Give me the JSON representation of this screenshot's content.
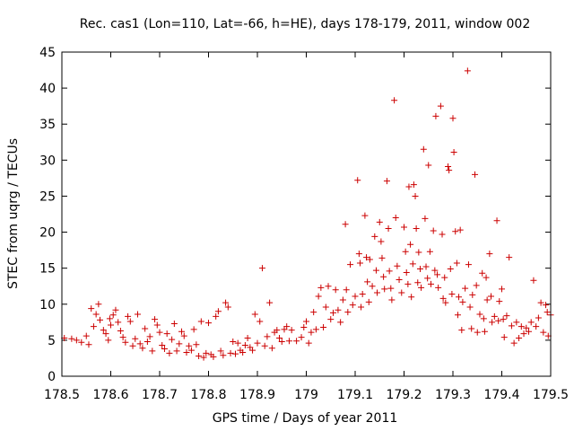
{
  "chart_data": {
    "type": "scatter",
    "title": "Rec. cas1 (Lon=110, Lat=-66, h=HE), days 178-179, 2011, window 002",
    "xlabel": "GPS time / Days of year 2011",
    "ylabel": "STEC from uqrg / TECUs",
    "xlim": [
      178.5,
      179.5
    ],
    "ylim": [
      0,
      45
    ],
    "x_ticks": [
      "178.5",
      "178.6",
      "178.7",
      "178.8",
      "178.9",
      "179",
      "179.1",
      "179.2",
      "179.3",
      "179.4",
      "179.5"
    ],
    "y_ticks": [
      "0",
      "5",
      "10",
      "15",
      "20",
      "25",
      "30",
      "35",
      "40",
      "45"
    ],
    "marker": "+",
    "color": "#cc0000",
    "grid": false,
    "legend": "none",
    "points": [
      [
        178.505,
        5.3
      ],
      [
        178.52,
        5.2
      ],
      [
        178.53,
        5.0
      ],
      [
        178.54,
        4.7
      ],
      [
        178.55,
        5.6
      ],
      [
        178.555,
        4.4
      ],
      [
        178.56,
        9.4
      ],
      [
        178.565,
        6.9
      ],
      [
        178.57,
        8.6
      ],
      [
        178.575,
        10.0
      ],
      [
        178.578,
        7.8
      ],
      [
        178.585,
        6.4
      ],
      [
        178.59,
        5.9
      ],
      [
        178.595,
        5.0
      ],
      [
        178.598,
        8.0
      ],
      [
        178.6,
        7.1
      ],
      [
        178.605,
        8.5
      ],
      [
        178.61,
        9.2
      ],
      [
        178.615,
        7.5
      ],
      [
        178.62,
        6.3
      ],
      [
        178.625,
        5.4
      ],
      [
        178.63,
        4.7
      ],
      [
        178.635,
        8.3
      ],
      [
        178.64,
        7.6
      ],
      [
        178.645,
        4.2
      ],
      [
        178.65,
        5.2
      ],
      [
        178.655,
        8.6
      ],
      [
        178.66,
        4.5
      ],
      [
        178.665,
        3.9
      ],
      [
        178.67,
        6.6
      ],
      [
        178.675,
        4.8
      ],
      [
        178.68,
        5.5
      ],
      [
        178.685,
        3.5
      ],
      [
        178.69,
        7.9
      ],
      [
        178.695,
        7.1
      ],
      [
        178.7,
        6.1
      ],
      [
        178.705,
        4.3
      ],
      [
        178.71,
        3.8
      ],
      [
        178.715,
        5.9
      ],
      [
        178.72,
        3.2
      ],
      [
        178.725,
        5.1
      ],
      [
        178.73,
        7.3
      ],
      [
        178.735,
        3.5
      ],
      [
        178.74,
        4.5
      ],
      [
        178.745,
        6.2
      ],
      [
        178.75,
        5.6
      ],
      [
        178.755,
        3.3
      ],
      [
        178.76,
        4.2
      ],
      [
        178.765,
        3.6
      ],
      [
        178.77,
        6.5
      ],
      [
        178.775,
        4.4
      ],
      [
        178.78,
        2.8
      ],
      [
        178.785,
        7.6
      ],
      [
        178.79,
        2.6
      ],
      [
        178.795,
        3.2
      ],
      [
        178.8,
        7.4
      ],
      [
        178.805,
        3.0
      ],
      [
        178.81,
        2.7
      ],
      [
        178.815,
        8.3
      ],
      [
        178.82,
        9.0
      ],
      [
        178.825,
        3.5
      ],
      [
        178.83,
        2.9
      ],
      [
        178.835,
        10.2
      ],
      [
        178.84,
        9.6
      ],
      [
        178.845,
        3.2
      ],
      [
        178.85,
        4.8
      ],
      [
        178.855,
        3.1
      ],
      [
        178.86,
        4.6
      ],
      [
        178.865,
        3.6
      ],
      [
        178.87,
        3.3
      ],
      [
        178.875,
        4.3
      ],
      [
        178.88,
        5.3
      ],
      [
        178.885,
        4.0
      ],
      [
        178.89,
        3.6
      ],
      [
        178.895,
        8.6
      ],
      [
        178.9,
        4.6
      ],
      [
        178.905,
        7.6
      ],
      [
        178.91,
        15.0
      ],
      [
        178.915,
        4.2
      ],
      [
        178.92,
        5.5
      ],
      [
        178.925,
        10.2
      ],
      [
        178.93,
        3.9
      ],
      [
        178.935,
        6.1
      ],
      [
        178.94,
        6.4
      ],
      [
        178.945,
        5.3
      ],
      [
        178.95,
        4.8
      ],
      [
        178.955,
        6.5
      ],
      [
        178.96,
        6.9
      ],
      [
        178.965,
        4.9
      ],
      [
        178.97,
        6.4
      ],
      [
        178.98,
        4.9
      ],
      [
        178.99,
        5.4
      ],
      [
        178.995,
        6.8
      ],
      [
        179.0,
        7.6
      ],
      [
        179.005,
        4.6
      ],
      [
        179.01,
        6.1
      ],
      [
        179.015,
        8.9
      ],
      [
        179.02,
        6.5
      ],
      [
        179.025,
        11.1
      ],
      [
        179.03,
        12.3
      ],
      [
        179.035,
        6.8
      ],
      [
        179.04,
        9.6
      ],
      [
        179.045,
        12.5
      ],
      [
        179.05,
        7.9
      ],
      [
        179.055,
        8.8
      ],
      [
        179.06,
        12.0
      ],
      [
        179.065,
        9.2
      ],
      [
        179.07,
        7.5
      ],
      [
        179.075,
        10.6
      ],
      [
        179.08,
        21.1
      ],
      [
        179.082,
        12.0
      ],
      [
        179.085,
        8.9
      ],
      [
        179.09,
        15.5
      ],
      [
        179.095,
        9.9
      ],
      [
        179.1,
        11.1
      ],
      [
        179.105,
        27.2
      ],
      [
        179.108,
        17.0
      ],
      [
        179.11,
        15.7
      ],
      [
        179.112,
        9.6
      ],
      [
        179.115,
        11.4
      ],
      [
        179.12,
        22.3
      ],
      [
        179.123,
        16.5
      ],
      [
        179.125,
        13.1
      ],
      [
        179.128,
        10.3
      ],
      [
        179.13,
        16.2
      ],
      [
        179.135,
        12.5
      ],
      [
        179.14,
        19.4
      ],
      [
        179.143,
        14.7
      ],
      [
        179.145,
        11.6
      ],
      [
        179.15,
        21.4
      ],
      [
        179.153,
        18.7
      ],
      [
        179.155,
        16.4
      ],
      [
        179.158,
        13.8
      ],
      [
        179.16,
        12.1
      ],
      [
        179.165,
        27.1
      ],
      [
        179.168,
        20.5
      ],
      [
        179.17,
        14.6
      ],
      [
        179.173,
        12.2
      ],
      [
        179.175,
        10.6
      ],
      [
        179.18,
        38.3
      ],
      [
        179.183,
        22.0
      ],
      [
        179.186,
        15.3
      ],
      [
        179.19,
        13.4
      ],
      [
        179.195,
        11.6
      ],
      [
        179.2,
        20.7
      ],
      [
        179.203,
        17.3
      ],
      [
        179.205,
        14.4
      ],
      [
        179.208,
        12.8
      ],
      [
        179.21,
        26.3
      ],
      [
        179.213,
        18.3
      ],
      [
        179.215,
        11.0
      ],
      [
        179.218,
        15.6
      ],
      [
        179.22,
        26.6
      ],
      [
        179.223,
        25.0
      ],
      [
        179.225,
        20.5
      ],
      [
        179.228,
        13.0
      ],
      [
        179.23,
        17.2
      ],
      [
        179.233,
        14.9
      ],
      [
        179.235,
        12.3
      ],
      [
        179.24,
        31.5
      ],
      [
        179.243,
        21.9
      ],
      [
        179.245,
        15.2
      ],
      [
        179.248,
        13.6
      ],
      [
        179.25,
        29.3
      ],
      [
        179.253,
        17.3
      ],
      [
        179.255,
        12.8
      ],
      [
        179.26,
        20.2
      ],
      [
        179.263,
        14.7
      ],
      [
        179.265,
        36.1
      ],
      [
        179.268,
        14.1
      ],
      [
        179.27,
        12.3
      ],
      [
        179.275,
        37.5
      ],
      [
        179.278,
        19.7
      ],
      [
        179.28,
        10.8
      ],
      [
        179.283,
        13.7
      ],
      [
        179.285,
        10.2
      ],
      [
        179.29,
        29.1
      ],
      [
        179.292,
        28.6
      ],
      [
        179.295,
        14.9
      ],
      [
        179.298,
        11.4
      ],
      [
        179.3,
        35.8
      ],
      [
        179.302,
        31.1
      ],
      [
        179.305,
        20.1
      ],
      [
        179.308,
        15.7
      ],
      [
        179.31,
        8.5
      ],
      [
        179.312,
        11.0
      ],
      [
        179.315,
        20.3
      ],
      [
        179.318,
        6.4
      ],
      [
        179.32,
        10.3
      ],
      [
        179.325,
        12.2
      ],
      [
        179.33,
        42.4
      ],
      [
        179.332,
        15.5
      ],
      [
        179.335,
        9.6
      ],
      [
        179.338,
        6.6
      ],
      [
        179.34,
        11.3
      ],
      [
        179.345,
        28.0
      ],
      [
        179.348,
        12.6
      ],
      [
        179.35,
        6.1
      ],
      [
        179.355,
        8.6
      ],
      [
        179.36,
        14.3
      ],
      [
        179.363,
        8.0
      ],
      [
        179.365,
        6.2
      ],
      [
        179.368,
        13.7
      ],
      [
        179.37,
        10.6
      ],
      [
        179.375,
        17.0
      ],
      [
        179.378,
        11.1
      ],
      [
        179.38,
        7.5
      ],
      [
        179.385,
        8.3
      ],
      [
        179.39,
        21.6
      ],
      [
        179.393,
        7.7
      ],
      [
        179.395,
        10.4
      ],
      [
        179.4,
        12.1
      ],
      [
        179.403,
        7.9
      ],
      [
        179.405,
        5.4
      ],
      [
        179.41,
        8.4
      ],
      [
        179.415,
        16.5
      ],
      [
        179.42,
        7.0
      ],
      [
        179.425,
        4.6
      ],
      [
        179.43,
        7.5
      ],
      [
        179.435,
        5.3
      ],
      [
        179.44,
        6.9
      ],
      [
        179.445,
        5.9
      ],
      [
        179.45,
        6.7
      ],
      [
        179.455,
        6.2
      ],
      [
        179.46,
        7.5
      ],
      [
        179.465,
        13.3
      ],
      [
        179.47,
        6.9
      ],
      [
        179.475,
        8.1
      ],
      [
        179.48,
        10.2
      ],
      [
        179.485,
        6.1
      ],
      [
        179.49,
        9.9
      ],
      [
        179.493,
        8.9
      ],
      [
        179.495,
        5.6
      ],
      [
        179.5,
        8.5
      ]
    ]
  }
}
